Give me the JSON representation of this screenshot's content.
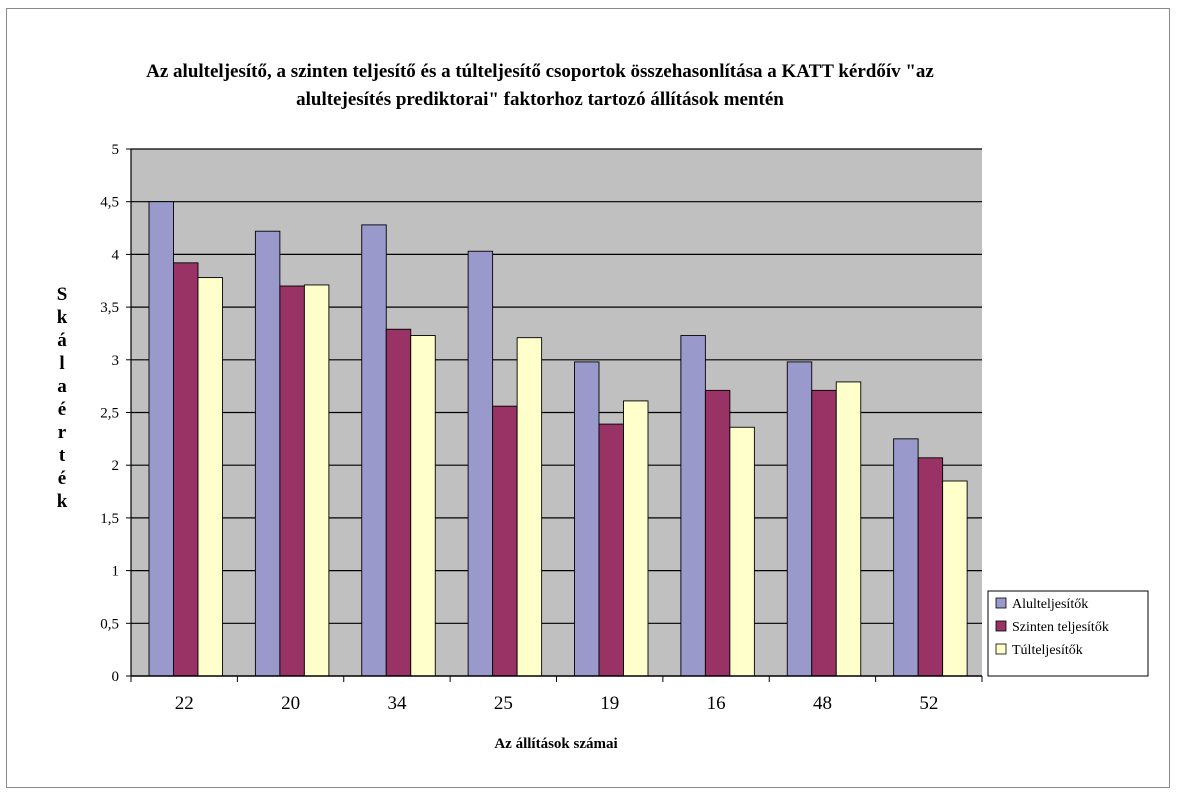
{
  "chart_data": {
    "type": "bar",
    "title": "Az alulteljesítő, a szinten teljesítő és a túlteljesítő csoportok összehasonlítása a KATT kérdőív \"az alultejesítés prediktorai\" faktorhoz tartozó állítások mentén",
    "title_lines": [
      "Az alulteljesítő, a szinten teljesítő és a túlteljesítő csoportok összehasonlítása a KATT kérdőív \"az",
      "alultejesítés prediktorai\" faktorhoz tartozó állítások mentén"
    ],
    "xlabel": "Az állítások számai",
    "ylabel": "Skálaérték",
    "categories": [
      "22",
      "20",
      "34",
      "25",
      "19",
      "16",
      "48",
      "52"
    ],
    "ylim": [
      0,
      5
    ],
    "yticks": [
      "0",
      "0,5",
      "1",
      "1,5",
      "2",
      "2,5",
      "3",
      "3,5",
      "4",
      "4,5",
      "5"
    ],
    "grid": true,
    "legend_position": "right",
    "series": [
      {
        "name": "Alulteljesítők",
        "color": "#9999cc",
        "values": [
          4.5,
          4.22,
          4.28,
          4.03,
          2.98,
          3.23,
          2.98,
          2.25
        ]
      },
      {
        "name": "Szinten teljesítők",
        "color": "#993366",
        "values": [
          3.92,
          3.7,
          3.29,
          2.56,
          2.39,
          2.71,
          2.71,
          2.07
        ]
      },
      {
        "name": "Túlteljesítők",
        "color": "#ffffcc",
        "values": [
          3.78,
          3.71,
          3.23,
          3.21,
          2.61,
          2.36,
          2.79,
          1.85
        ]
      }
    ]
  }
}
